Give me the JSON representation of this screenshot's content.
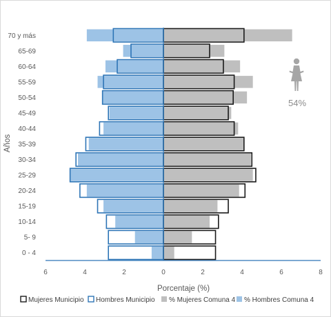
{
  "chart_data": {
    "type": "bar",
    "orientation": "horizontal",
    "xlabel": "Porcentaje (%)",
    "ylabel": "Años",
    "xlim": [
      -6,
      8
    ],
    "x_ticks": [
      -6,
      -4,
      -2,
      0,
      2,
      4,
      6,
      8
    ],
    "x_tick_labels": [
      "6",
      "4",
      "2",
      "0",
      "2",
      "4",
      "6",
      "8"
    ],
    "categories": [
      "0 - 4",
      "5- 9",
      "10-14",
      "15-19",
      "20-24",
      "25-29",
      "30-34",
      "35-39",
      "40-44",
      "45-49",
      "50-54",
      "55-59",
      "60-64",
      "65-69",
      "70 y más"
    ],
    "series": [
      {
        "name": "Mujeres Municipio",
        "style": "outline",
        "color": "#1a1a1a",
        "side": "right",
        "values": [
          2.65,
          2.65,
          2.8,
          3.3,
          4.15,
          4.7,
          4.5,
          4.1,
          3.6,
          3.3,
          3.55,
          3.6,
          3.05,
          2.35,
          4.1
        ]
      },
      {
        "name": "Hombres Municipio",
        "style": "outline",
        "color": "#2e75b6",
        "side": "left",
        "values": [
          2.8,
          2.8,
          2.9,
          3.35,
          4.25,
          4.75,
          4.45,
          3.95,
          3.25,
          2.8,
          3.1,
          3.05,
          2.35,
          1.65,
          2.55
        ]
      },
      {
        "name": "% Mujeres Comuna 4",
        "style": "fill",
        "color": "#bfbfbf",
        "side": "right",
        "values": [
          0.55,
          1.45,
          2.35,
          2.75,
          3.85,
          4.55,
          4.45,
          4.1,
          3.8,
          3.45,
          4.25,
          4.55,
          3.9,
          3.1,
          6.55
        ]
      },
      {
        "name": "% Hombres Comuna 4",
        "style": "fill",
        "color": "#9dc3e6",
        "side": "left",
        "values": [
          0.6,
          1.45,
          2.45,
          3.05,
          3.9,
          4.75,
          4.35,
          3.8,
          3.05,
          2.75,
          3.1,
          3.35,
          2.95,
          2.05,
          3.9
        ]
      }
    ],
    "legend_position": "bottom",
    "grid": false,
    "annotation": {
      "text": "54%",
      "icon": "woman-icon",
      "color": "#a6a6a6"
    }
  }
}
